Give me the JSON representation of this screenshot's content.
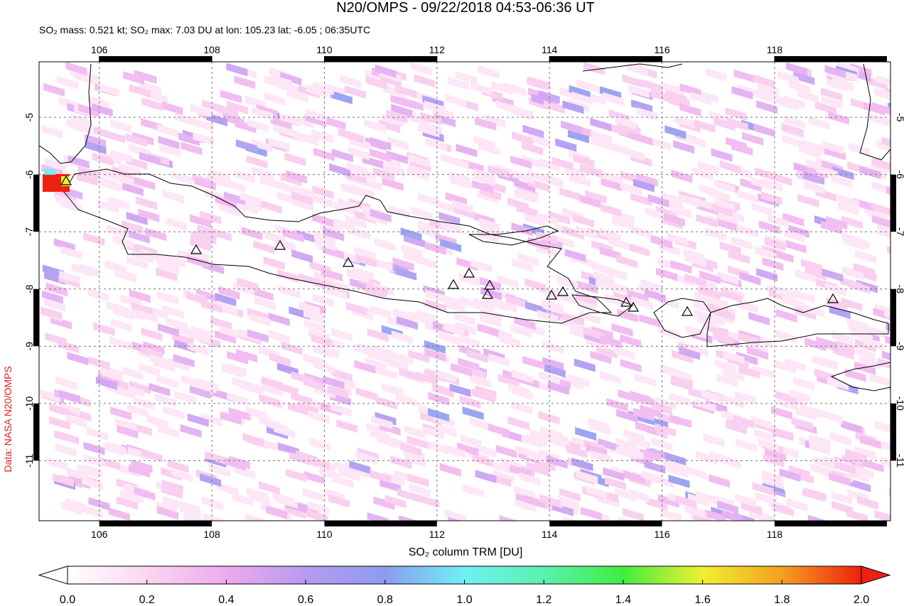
{
  "title": "N20/OMPS - 09/22/2018 04:53-06:36 UT",
  "subtitle": "SO₂ mass: 0.521 kt; SO₂ max: 7.03 DU at lon: 105.23 lat: -6.05 ; 06:35UTC",
  "credit": "Data: NASA N20/OMPS",
  "map": {
    "xlim": [
      104.93,
      120.06
    ],
    "ylim": [
      -4.03,
      -12.05
    ],
    "xticks": [
      106,
      108,
      110,
      112,
      114,
      116,
      118
    ],
    "yticks": [
      -5,
      -6,
      -7,
      -8,
      -9,
      -10,
      -11
    ]
  },
  "colorbar": {
    "label": "SO₂ column TRM [DU]",
    "lim": [
      0,
      2
    ],
    "ticks": [
      {
        "value": 0,
        "label": "0.0"
      },
      {
        "value": 0.2,
        "label": "0.2"
      },
      {
        "value": 0.4,
        "label": "0.4"
      },
      {
        "value": 0.6,
        "label": "0.6"
      },
      {
        "value": 0.8,
        "label": "0.8"
      },
      {
        "value": 1,
        "label": "1.0"
      },
      {
        "value": 1.2,
        "label": "1.2"
      },
      {
        "value": 1.4,
        "label": "1.4"
      },
      {
        "value": 1.6,
        "label": "1.6"
      },
      {
        "value": 1.8,
        "label": "1.8"
      },
      {
        "value": 2,
        "label": "2.0"
      }
    ]
  }
}
